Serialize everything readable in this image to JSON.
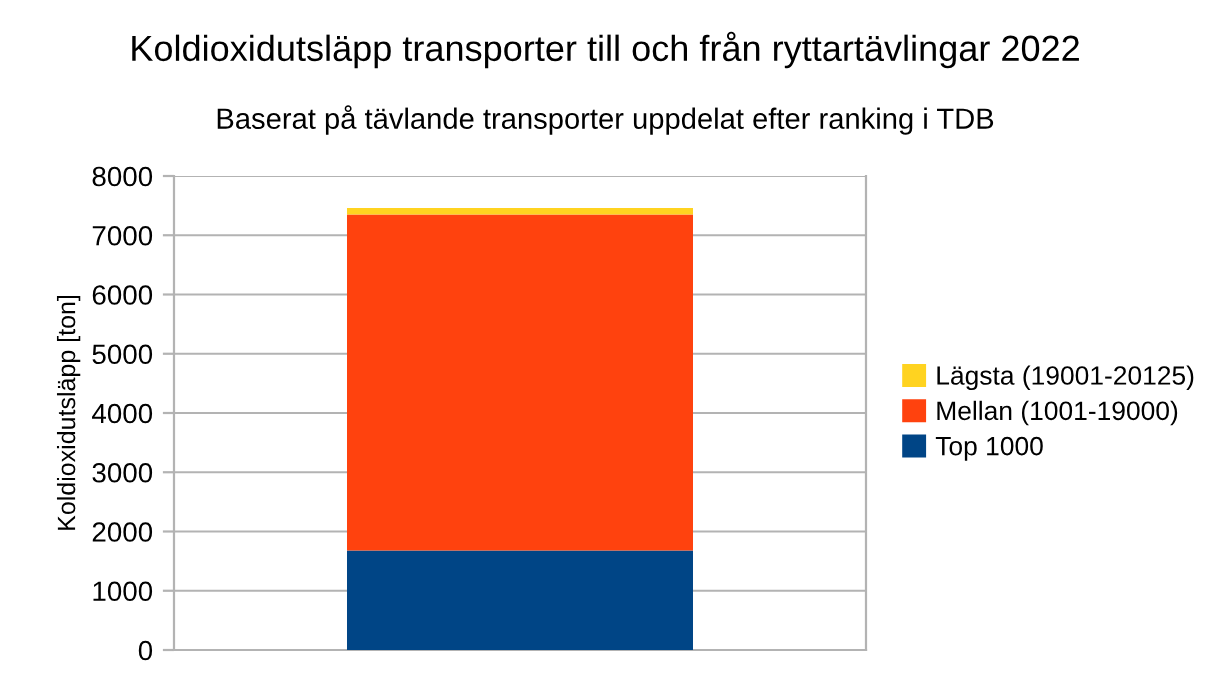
{
  "chart_data": {
    "type": "bar",
    "title": "Koldioxidutsläpp transporter till och från ryttartävlingar 2022",
    "subtitle": "Baserat på tävlande transporter uppdelat efter ranking i TDB",
    "ylabel": "Koldioxidutsläpp [ton]",
    "categories": [
      null
    ],
    "stacked": true,
    "series": [
      {
        "name": "Top 1000",
        "color": "#004586",
        "values": [
          1680
        ]
      },
      {
        "name": "Mellan (1001-19000)",
        "color": "#ff420e",
        "values": [
          5670
        ]
      },
      {
        "name": "Lägsta (19001-20125)",
        "color": "#ffd320",
        "values": [
          110
        ]
      }
    ],
    "ylim": [
      0,
      8000
    ],
    "yticks": [
      0,
      1000,
      2000,
      3000,
      4000,
      5000,
      6000,
      7000,
      8000
    ],
    "grid": "y",
    "legend": "right"
  }
}
